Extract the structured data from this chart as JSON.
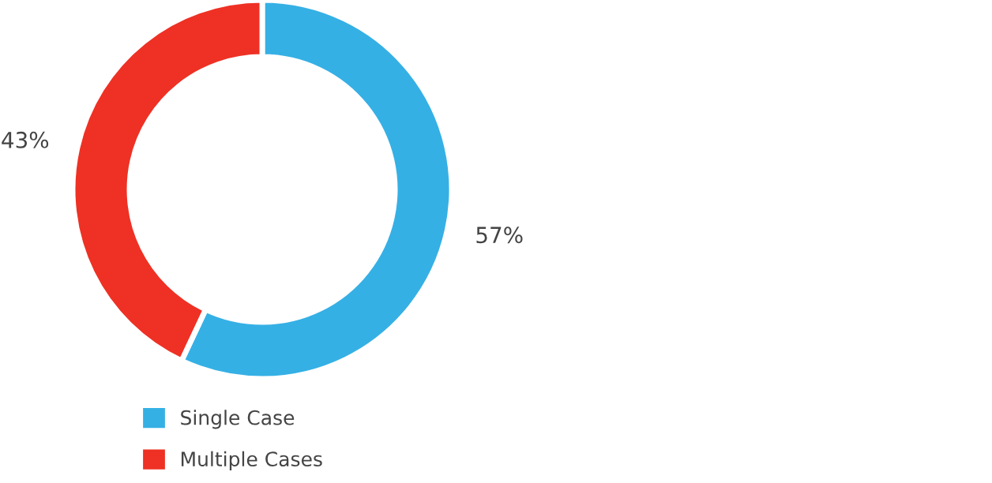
{
  "chart_data": {
    "type": "donut",
    "categories": [
      "Single Case",
      "Multiple Cases"
    ],
    "values": [
      57,
      43
    ],
    "colors": [
      "#35b0e5",
      "#ee3124"
    ],
    "value_labels": [
      "57%",
      "43%"
    ],
    "legend": "bottom"
  }
}
